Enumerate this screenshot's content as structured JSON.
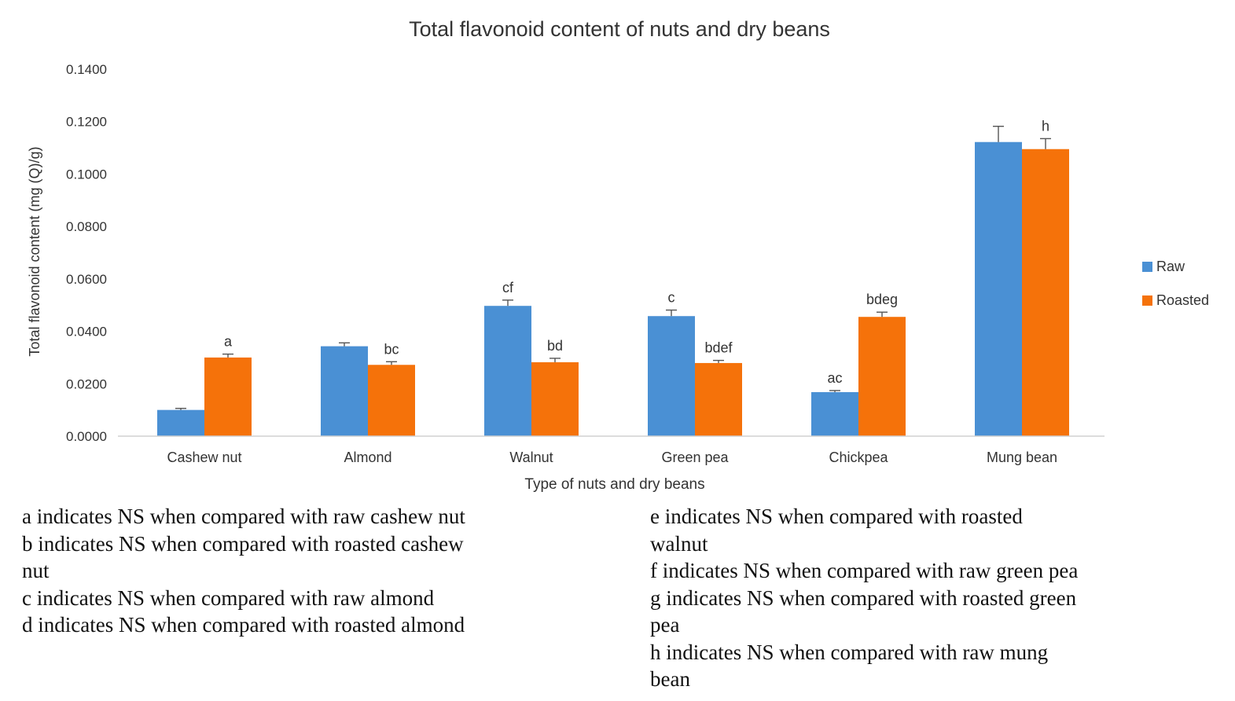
{
  "chart_data": {
    "type": "bar",
    "title": "Total flavonoid content of nuts and dry beans",
    "xlabel": "Type of nuts and dry beans",
    "ylabel": "Total flavonoid content (mg (Q)/g)",
    "ylim": [
      0,
      0.14
    ],
    "yticks": [
      "0.0000",
      "0.0200",
      "0.0400",
      "0.0600",
      "0.0800",
      "0.1000",
      "0.1200",
      "0.1400"
    ],
    "grid": false,
    "legend_position": "right",
    "categories": [
      "Cashew nut",
      "Almond",
      "Walnut",
      "Green pea",
      "Chickpea",
      "Mung bean"
    ],
    "series": [
      {
        "name": "Raw",
        "color": "#4a90d4",
        "values": [
          0.01,
          0.0343,
          0.0497,
          0.0458,
          0.0168,
          0.1122
        ],
        "errors": [
          0.0006,
          0.0013,
          0.0022,
          0.0023,
          0.0006,
          0.006
        ],
        "labels": [
          "",
          "",
          "cf",
          "c",
          "ac",
          ""
        ]
      },
      {
        "name": "Roasted",
        "color": "#f5720a",
        "values": [
          0.03,
          0.0272,
          0.0282,
          0.0279,
          0.0455,
          0.1095
        ],
        "errors": [
          0.0013,
          0.0012,
          0.0015,
          0.001,
          0.0018,
          0.004
        ],
        "labels": [
          "a",
          "bc",
          "bd",
          "bdef",
          "bdeg",
          "h"
        ]
      }
    ]
  },
  "notes": {
    "left": [
      "a indicates NS when compared with raw cashew nut",
      "b indicates NS when compared with roasted cashew",
      "nut",
      "c indicates NS when compared with raw almond",
      "d indicates NS when compared with roasted almond"
    ],
    "right": [
      "e indicates NS when compared with roasted",
      "walnut",
      "f indicates NS when compared with raw green pea",
      "g indicates NS when compared with roasted green",
      "pea",
      "h indicates NS when compared with raw mung",
      "bean"
    ]
  }
}
